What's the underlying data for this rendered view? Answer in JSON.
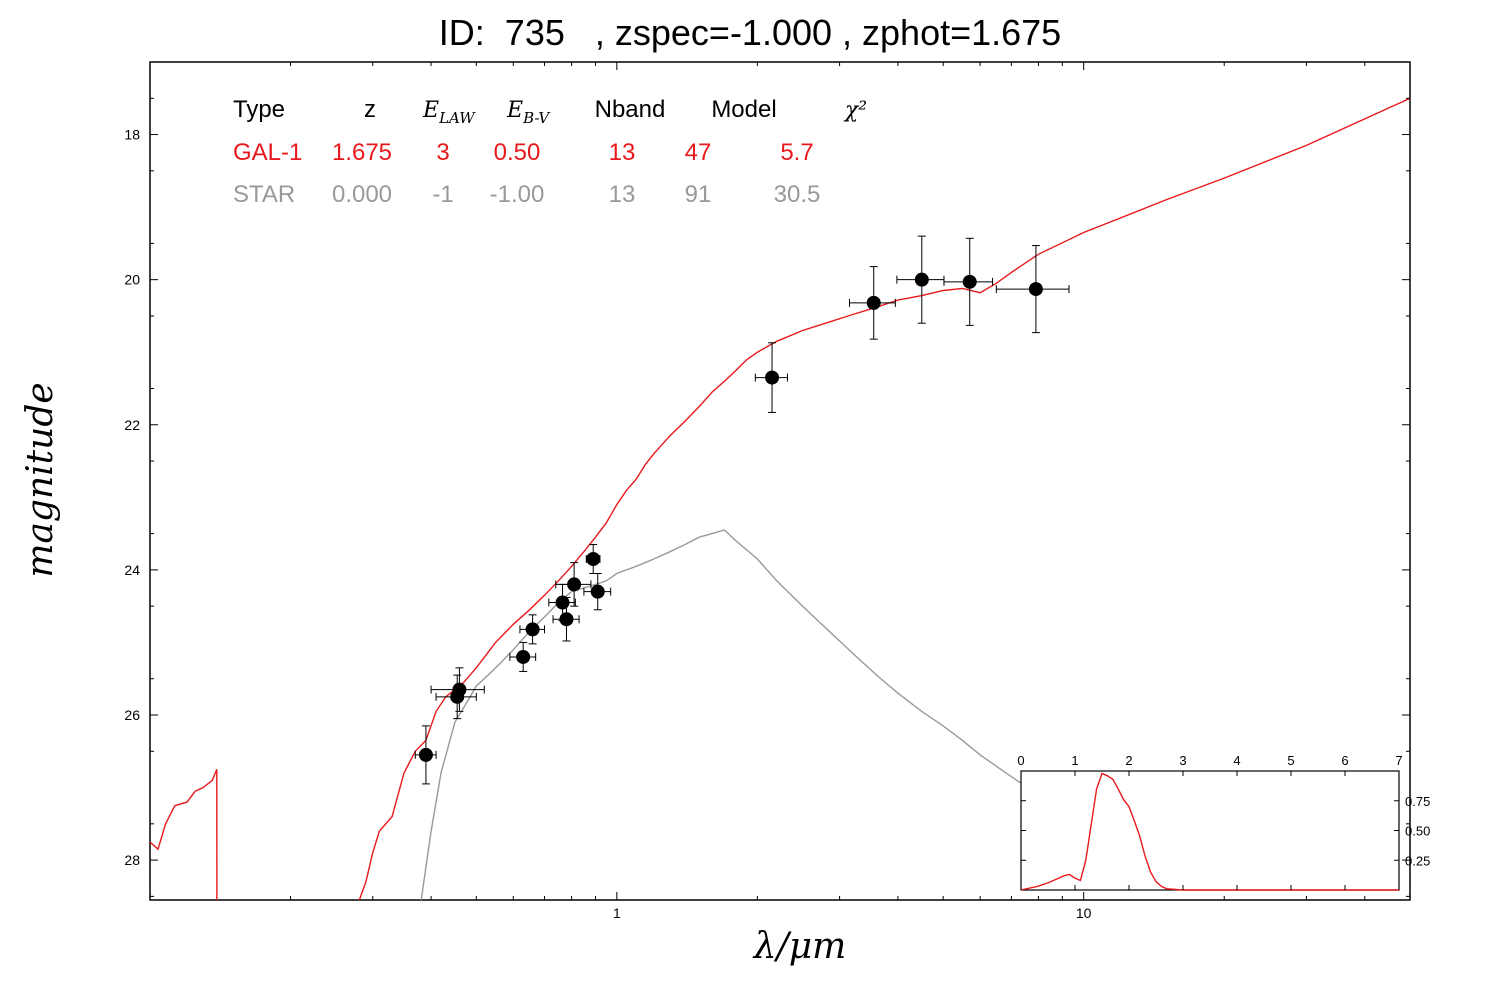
{
  "chart_data": {
    "type": "line",
    "title": "ID:  735   , zspec=-1.000 , zphot=1.675",
    "xlabel": "λ/μm",
    "ylabel": "magnitude",
    "xscale": "log",
    "xlim": [
      0.1,
      50
    ],
    "ylim": [
      28.55,
      17.0
    ],
    "x_ticks": [
      "1",
      "10"
    ],
    "y_ticks": [
      "18",
      "20",
      "22",
      "24",
      "26",
      "28"
    ],
    "legend": {
      "headers": [
        "Type",
        "z",
        "E_LAW",
        "E_B-V",
        "Nband",
        "Model",
        "χ²"
      ],
      "rows": [
        {
          "type": "GAL-1",
          "z": "1.675",
          "elaw": "3",
          "ebv": "0.50",
          "nband": "13",
          "model": "47",
          "chi2": "5.7",
          "color": "#e8191c"
        },
        {
          "type": "STAR",
          "z": "0.000",
          "elaw": "-1",
          "ebv": "-1.00",
          "nband": "13",
          "model": "91",
          "chi2": "30.5",
          "color": "#999999"
        }
      ]
    },
    "series": [
      {
        "name": "GAL-1",
        "color": "#e8191c",
        "x": [
          0.1,
          0.104,
          0.108,
          0.113,
          0.12,
          0.125,
          0.13,
          0.136,
          0.139,
          0.1391,
          0.2,
          0.279,
          0.29,
          0.3,
          0.31,
          0.33,
          0.35,
          0.37,
          0.39,
          0.41,
          0.43,
          0.45,
          0.47,
          0.5,
          0.55,
          0.6,
          0.65,
          0.7,
          0.75,
          0.8,
          0.85,
          0.9,
          0.95,
          1.0,
          1.05,
          1.1,
          1.15,
          1.2,
          1.3,
          1.4,
          1.5,
          1.6,
          1.7,
          1.8,
          1.9,
          2.0,
          2.2,
          2.5,
          2.8,
          3.2,
          3.6,
          4.0,
          4.5,
          5.0,
          5.5,
          6.0,
          6.5,
          7.0,
          8.0,
          10.0,
          15.0,
          20.0,
          30.0,
          50.0
        ],
        "y": [
          27.75,
          27.85,
          27.5,
          27.25,
          27.2,
          27.05,
          27.0,
          26.9,
          26.75,
          28.6,
          28.6,
          28.6,
          28.3,
          27.9,
          27.6,
          27.4,
          26.8,
          26.5,
          26.35,
          25.95,
          25.75,
          25.65,
          25.55,
          25.35,
          25.0,
          24.75,
          24.55,
          24.35,
          24.15,
          23.95,
          23.75,
          23.55,
          23.35,
          23.1,
          22.9,
          22.75,
          22.55,
          22.4,
          22.15,
          21.95,
          21.75,
          21.55,
          21.4,
          21.25,
          21.1,
          21.0,
          20.85,
          20.7,
          20.6,
          20.48,
          20.38,
          20.28,
          20.22,
          20.15,
          20.12,
          20.18,
          20.05,
          19.9,
          19.65,
          19.35,
          18.9,
          18.6,
          18.15,
          17.5
        ]
      },
      {
        "name": "STAR",
        "color": "#999999",
        "x": [
          0.38,
          0.4,
          0.42,
          0.45,
          0.48,
          0.5,
          0.53,
          0.56,
          0.6,
          0.65,
          0.7,
          0.75,
          0.8,
          0.85,
          0.9,
          0.95,
          1.0,
          1.1,
          1.2,
          1.3,
          1.4,
          1.5,
          1.6,
          1.7,
          1.8,
          2.0,
          2.2,
          2.5,
          2.8,
          3.2,
          3.6,
          4.0,
          4.5,
          5.0,
          5.5,
          6.0,
          7.0,
          8.0,
          9.0,
          10.0
        ],
        "y": [
          28.6,
          27.6,
          26.8,
          26.1,
          25.8,
          25.6,
          25.45,
          25.3,
          25.1,
          24.85,
          24.65,
          24.45,
          24.3,
          24.25,
          24.2,
          24.15,
          24.05,
          23.95,
          23.85,
          23.75,
          23.65,
          23.55,
          23.5,
          23.45,
          23.6,
          23.85,
          24.15,
          24.5,
          24.8,
          25.15,
          25.45,
          25.7,
          25.95,
          26.15,
          26.35,
          26.55,
          26.85,
          27.1,
          27.3,
          27.5
        ]
      }
    ],
    "photometry": [
      {
        "x": 0.39,
        "y": 26.55,
        "xerr": 0.02,
        "yerr": 0.4
      },
      {
        "x": 0.455,
        "y": 25.75,
        "xerr": 0.045,
        "yerr": 0.3
      },
      {
        "x": 0.46,
        "y": 25.65,
        "xerr": 0.06,
        "yerr": 0.3
      },
      {
        "x": 0.63,
        "y": 25.2,
        "xerr": 0.04,
        "yerr": 0.2
      },
      {
        "x": 0.66,
        "y": 24.82,
        "xerr": 0.04,
        "yerr": 0.2
      },
      {
        "x": 0.765,
        "y": 24.45,
        "xerr": 0.05,
        "yerr": 0.25
      },
      {
        "x": 0.78,
        "y": 24.68,
        "xerr": 0.05,
        "yerr": 0.3
      },
      {
        "x": 0.81,
        "y": 24.2,
        "xerr": 0.07,
        "yerr": 0.3
      },
      {
        "x": 0.89,
        "y": 23.85,
        "xerr": 0.03,
        "yerr": 0.2
      },
      {
        "x": 0.91,
        "y": 24.3,
        "xerr": 0.06,
        "yerr": 0.25
      },
      {
        "x": 2.15,
        "y": 21.35,
        "xerr": 0.17,
        "yerr": 0.48
      },
      {
        "x": 3.55,
        "y": 20.32,
        "xerr": 0.4,
        "yerr": 0.5
      },
      {
        "x": 4.5,
        "y": 20.0,
        "xerr": 0.52,
        "yerr": 0.6
      },
      {
        "x": 5.7,
        "y": 20.03,
        "xerr": 0.68,
        "yerr": 0.6
      },
      {
        "x": 7.9,
        "y": 20.13,
        "xerr": 1.4,
        "yerr": 0.6
      }
    ],
    "inset": {
      "type": "line",
      "color": "#e8191c",
      "xlim": [
        0,
        7
      ],
      "ylim": [
        0,
        1.0
      ],
      "x_ticks": [
        "0",
        "1",
        "2",
        "3",
        "4",
        "5",
        "6",
        "7"
      ],
      "y_ticks": [
        "0.25",
        "0.50",
        "0.75"
      ],
      "x": [
        0.0,
        0.3,
        0.5,
        0.7,
        0.8,
        0.9,
        1.0,
        1.1,
        1.2,
        1.3,
        1.4,
        1.5,
        1.6,
        1.7,
        1.8,
        1.9,
        2.0,
        2.1,
        2.2,
        2.3,
        2.4,
        2.5,
        2.6,
        2.7,
        3.0,
        4.0,
        5.0,
        6.0,
        7.0
      ],
      "y": [
        0.0,
        0.03,
        0.06,
        0.1,
        0.12,
        0.13,
        0.1,
        0.08,
        0.25,
        0.55,
        0.85,
        0.98,
        0.96,
        0.93,
        0.85,
        0.76,
        0.7,
        0.58,
        0.45,
        0.28,
        0.15,
        0.07,
        0.03,
        0.01,
        0.0,
        0.0,
        0.0,
        0.0,
        0.0
      ]
    }
  }
}
